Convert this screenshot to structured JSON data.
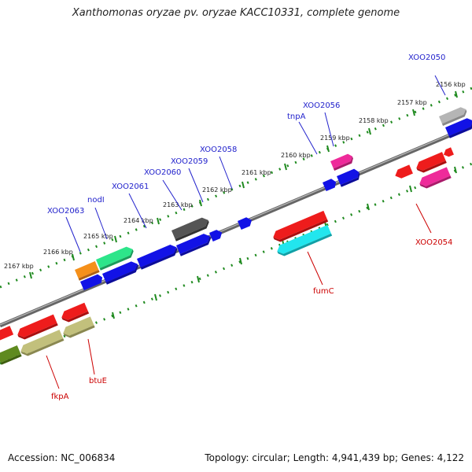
{
  "title": "Xanthomonas oryzae pv. oryzae KACC10331, complete genome",
  "footer": {
    "accession": "Accession: NC_006834",
    "topology": "Topology: circular; Length: 4,941,439 bp; Genes: 4,122"
  },
  "ticks": [
    "2156 kbp",
    "2157 kbp",
    "2158 kbp",
    "2159 kbp",
    "2160 kbp",
    "2161 kbp",
    "2162 kbp",
    "2163 kbp",
    "2164 kbp",
    "2165 kbp",
    "2166 kbp",
    "2167 kbp"
  ],
  "upper_labels": [
    "XOO2050",
    "XOO2056",
    "tnpA",
    "XOO2058",
    "XOO2059",
    "XOO2060",
    "XOO2061",
    "nodI",
    "XOO2063"
  ],
  "lower_labels": [
    "XOO2054",
    "fumC",
    "btuE",
    "fkpA"
  ],
  "colors": {
    "backbone": "#777777",
    "tick": "#1f8a1f",
    "upper_label": "#2222cc",
    "lower_label": "#cc0000",
    "blue": "#1212e6",
    "red": "#ee1c1c",
    "pink": "#ee2a9a",
    "cyan": "#22e6ee",
    "gray": "#b5b5b5",
    "darkgray": "#555555",
    "orange": "#f5901a",
    "green": "#2de58a",
    "olive": "#c2c07c",
    "darkolive": "#5f8a1f"
  }
}
